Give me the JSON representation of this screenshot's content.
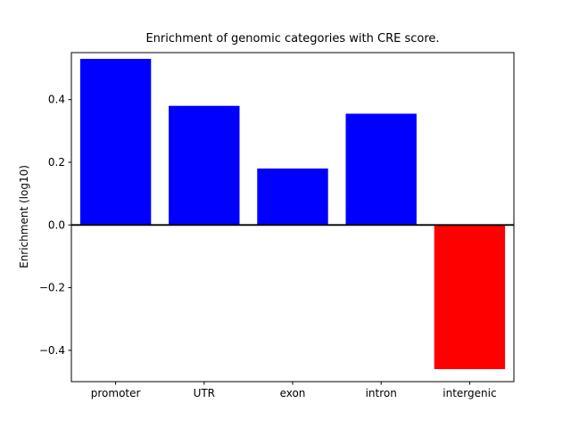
{
  "chart_data": {
    "type": "bar",
    "title": "Enrichment of genomic categories with CRE score.",
    "xlabel": "",
    "ylabel": "Enrichment (log10)",
    "categories": [
      "promoter",
      "UTR",
      "exon",
      "intron",
      "intergenic"
    ],
    "values": [
      0.53,
      0.38,
      0.18,
      0.355,
      -0.46
    ],
    "bar_colors": [
      "#0000ff",
      "#0000ff",
      "#0000ff",
      "#0000ff",
      "#ff0000"
    ],
    "ylim": [
      -0.5,
      0.55
    ],
    "yticks": [
      -0.4,
      -0.2,
      0.0,
      0.2,
      0.4
    ],
    "grid": false,
    "legend": null,
    "zero_line": true,
    "colors": {
      "positive_bar": "#0000ff",
      "negative_bar": "#ff0000",
      "axis": "#000000",
      "background": "#ffffff"
    }
  }
}
